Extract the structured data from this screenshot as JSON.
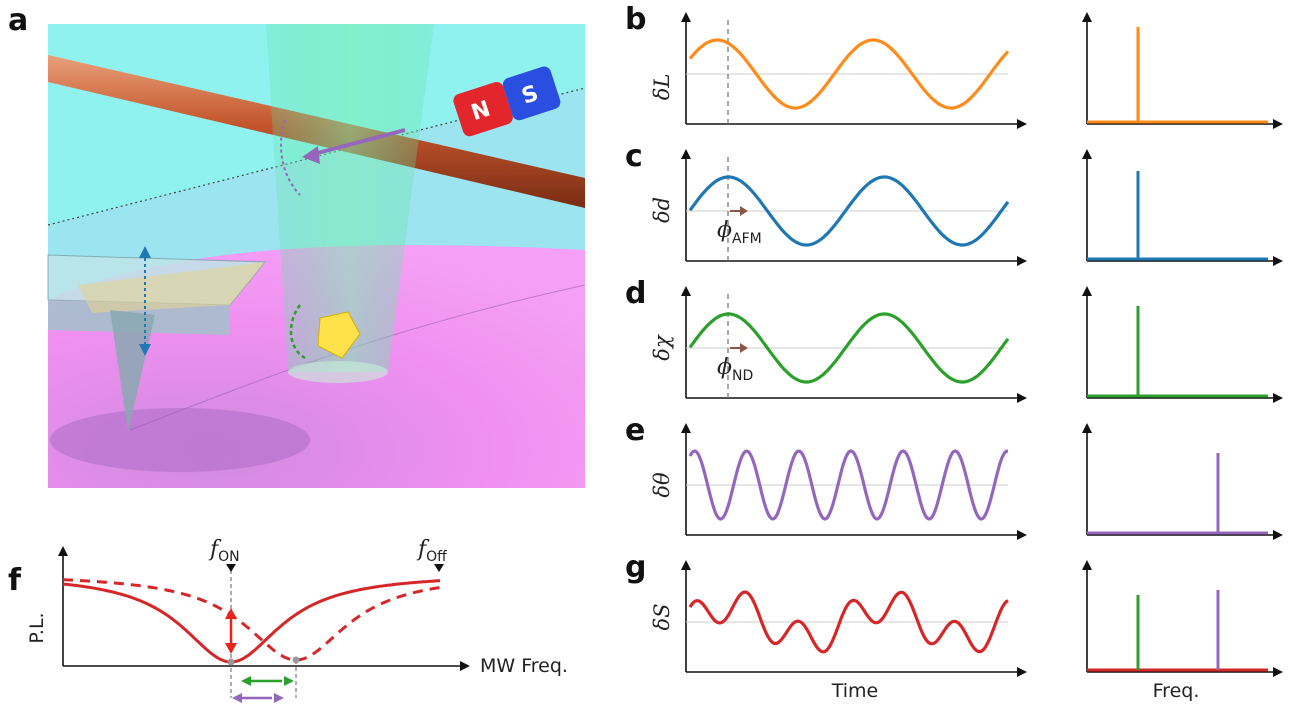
{
  "panels": {
    "a": {
      "letter": "a",
      "magnet": {
        "north": "N",
        "south": "S"
      }
    },
    "b": {
      "letter": "b",
      "ylabel": "δL",
      "color": "#ff8c1a"
    },
    "c": {
      "letter": "c",
      "ylabel": "δd",
      "color": "#1f77b4",
      "phase_label": "ϕ",
      "phase_sub": "AFM"
    },
    "d": {
      "letter": "d",
      "ylabel": "δχ",
      "color": "#2ca02c",
      "phase_label": "ϕ",
      "phase_sub": "ND"
    },
    "e": {
      "letter": "e",
      "ylabel": "δθ",
      "color": "#9467bd"
    },
    "g": {
      "letter": "g",
      "ylabel": "δS",
      "color": "#d62728"
    },
    "f": {
      "letter": "f",
      "ylabel": "P.L.",
      "xlabel": "MW Freq.",
      "f_on": "f",
      "f_on_sub": "ON",
      "f_off": "f",
      "f_off_sub": "Off",
      "color": "#d62728"
    }
  },
  "bottom_labels": {
    "time": "Time",
    "freq": "Freq."
  },
  "colors": {
    "orange": "#ff8c1a",
    "blue": "#1f77b4",
    "green": "#2ca02c",
    "purple": "#9467bd",
    "red": "#d62728",
    "brown": "#8c564b"
  }
}
